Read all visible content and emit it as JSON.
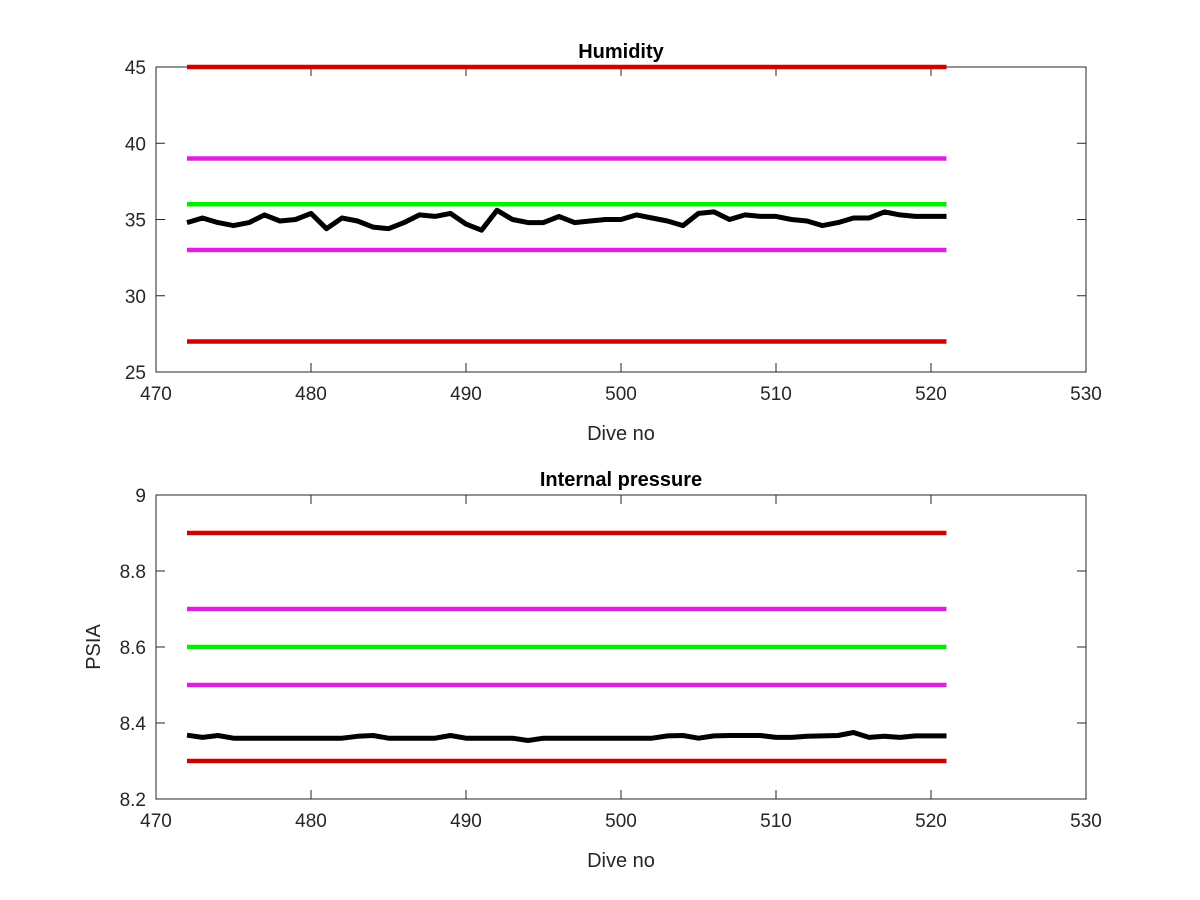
{
  "chart_data": [
    {
      "type": "line",
      "title": "Humidity",
      "xlabel": "Dive no",
      "ylabel": "",
      "xlim": [
        470,
        530
      ],
      "ylim": [
        25,
        45
      ],
      "xticks": [
        470,
        480,
        490,
        500,
        510,
        520,
        530
      ],
      "yticks": [
        25,
        30,
        35,
        40,
        45
      ],
      "grid": false,
      "series": [
        {
          "color": "#d00000",
          "x": [
            472,
            521
          ],
          "values": [
            45,
            45
          ]
        },
        {
          "color": "#e020e0",
          "x": [
            472,
            521
          ],
          "values": [
            39,
            39
          ]
        },
        {
          "color": "#00ee00",
          "x": [
            472,
            521
          ],
          "values": [
            36,
            36
          ]
        },
        {
          "color": "#e020e0",
          "x": [
            472,
            521
          ],
          "values": [
            33,
            33
          ]
        },
        {
          "color": "#d00000",
          "x": [
            472,
            521
          ],
          "values": [
            27,
            27
          ]
        },
        {
          "color": "#000000",
          "x": [
            472,
            473,
            474,
            475,
            476,
            477,
            478,
            479,
            480,
            481,
            482,
            483,
            484,
            485,
            486,
            487,
            488,
            489,
            490,
            491,
            492,
            493,
            494,
            495,
            496,
            497,
            498,
            499,
            500,
            501,
            502,
            503,
            504,
            505,
            506,
            507,
            508,
            509,
            510,
            511,
            512,
            513,
            514,
            515,
            516,
            517,
            518,
            519,
            520,
            521
          ],
          "values": [
            34.8,
            35.1,
            34.8,
            34.6,
            34.8,
            35.3,
            34.9,
            35.0,
            35.4,
            34.4,
            35.1,
            34.9,
            34.5,
            34.4,
            34.8,
            35.3,
            35.2,
            35.4,
            34.7,
            34.3,
            35.6,
            35.0,
            34.8,
            34.8,
            35.2,
            34.8,
            34.9,
            35.0,
            35.0,
            35.3,
            35.1,
            34.9,
            34.6,
            35.4,
            35.5,
            35.0,
            35.3,
            35.2,
            35.2,
            35.0,
            34.9,
            34.6,
            34.8,
            35.1,
            35.1,
            35.5,
            35.3,
            35.2,
            35.2,
            35.2
          ]
        }
      ]
    },
    {
      "type": "line",
      "title": "Internal pressure",
      "xlabel": "Dive no",
      "ylabel": "PSIA",
      "xlim": [
        470,
        530
      ],
      "ylim": [
        8.2,
        9
      ],
      "xticks": [
        470,
        480,
        490,
        500,
        510,
        520,
        530
      ],
      "yticks": [
        8.2,
        8.4,
        8.6,
        8.8,
        9
      ],
      "grid": false,
      "series": [
        {
          "color": "#d00000",
          "x": [
            472,
            521
          ],
          "values": [
            8.9,
            8.9
          ]
        },
        {
          "color": "#e020e0",
          "x": [
            472,
            521
          ],
          "values": [
            8.7,
            8.7
          ]
        },
        {
          "color": "#00ee00",
          "x": [
            472,
            521
          ],
          "values": [
            8.6,
            8.6
          ]
        },
        {
          "color": "#e020e0",
          "x": [
            472,
            521
          ],
          "values": [
            8.5,
            8.5
          ]
        },
        {
          "color": "#d00000",
          "x": [
            472,
            521
          ],
          "values": [
            8.3,
            8.3
          ]
        },
        {
          "color": "#000000",
          "x": [
            472,
            473,
            474,
            475,
            476,
            477,
            478,
            479,
            480,
            481,
            482,
            483,
            484,
            485,
            486,
            487,
            488,
            489,
            490,
            491,
            492,
            493,
            494,
            495,
            496,
            497,
            498,
            499,
            500,
            501,
            502,
            503,
            504,
            505,
            506,
            507,
            508,
            509,
            510,
            511,
            512,
            513,
            514,
            515,
            516,
            517,
            518,
            519,
            520,
            521
          ],
          "values": [
            8.368,
            8.362,
            8.367,
            8.36,
            8.36,
            8.36,
            8.36,
            8.36,
            8.36,
            8.36,
            8.36,
            8.365,
            8.367,
            8.36,
            8.36,
            8.36,
            8.36,
            8.367,
            8.36,
            8.36,
            8.36,
            8.36,
            8.354,
            8.36,
            8.36,
            8.36,
            8.36,
            8.36,
            8.36,
            8.36,
            8.36,
            8.366,
            8.367,
            8.36,
            8.366,
            8.367,
            8.367,
            8.367,
            8.362,
            8.362,
            8.365,
            8.366,
            8.367,
            8.375,
            8.362,
            8.365,
            8.362,
            8.366,
            8.366,
            8.366
          ]
        }
      ]
    }
  ]
}
